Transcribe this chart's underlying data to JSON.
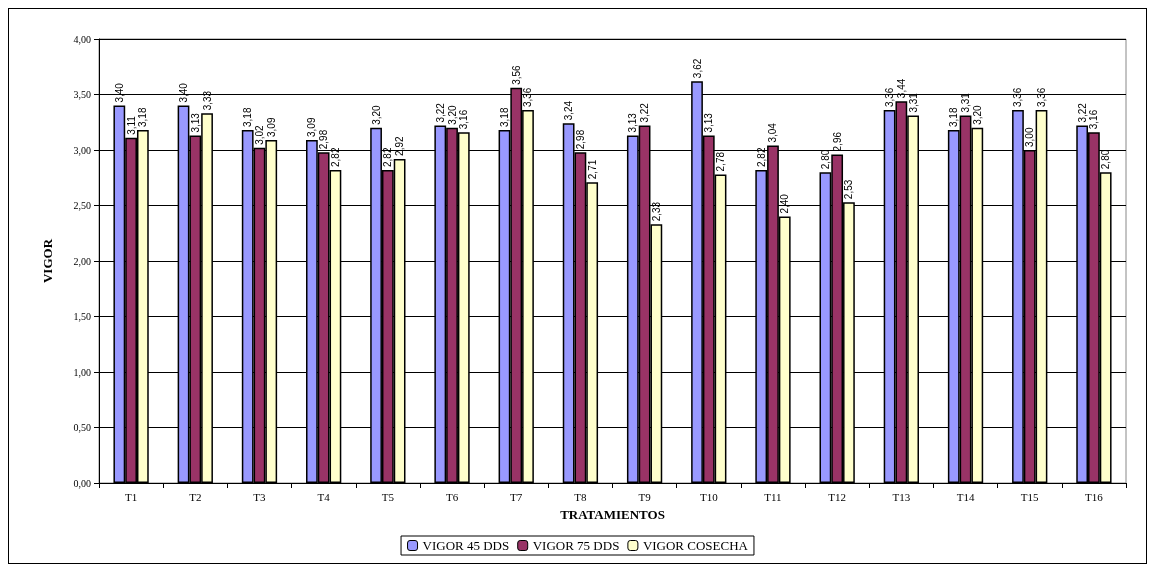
{
  "chart_data": {
    "type": "bar",
    "xlabel": "TRATAMIENTOS",
    "ylabel": "VIGOR",
    "categories": [
      "T1",
      "T2",
      "T3",
      "T4",
      "T5",
      "T6",
      "T7",
      "T8",
      "T9",
      "T10",
      "T11",
      "T12",
      "T13",
      "T14",
      "T15",
      "T16"
    ],
    "series": [
      {
        "name": "VIGOR 45 DDS",
        "color": "#9999ff",
        "values": [
          3.4,
          3.4,
          3.18,
          3.09,
          3.2,
          3.22,
          3.18,
          3.24,
          3.13,
          3.62,
          2.82,
          2.8,
          3.36,
          3.18,
          3.36,
          3.22
        ],
        "value_labels": [
          "3,40",
          "3,40",
          "3,18",
          "3,09",
          "3,20",
          "3,22",
          "3,18",
          "3,24",
          "3,13",
          "3,62",
          "2,82",
          "2,80",
          "3,36",
          "3,18",
          "3,36",
          "3,22"
        ]
      },
      {
        "name": "VIGOR 75 DDS",
        "color": "#993366",
        "values": [
          3.11,
          3.13,
          3.02,
          2.98,
          2.82,
          3.2,
          3.56,
          2.98,
          3.22,
          3.13,
          3.04,
          2.96,
          3.44,
          3.31,
          3.0,
          3.16
        ],
        "value_labels": [
          "3,11",
          "3,13",
          "3,02",
          "2,98",
          "2,82",
          "3,20",
          "3,56",
          "2,98",
          "3,22",
          "3,13",
          "3,04",
          "2,96",
          "3,44",
          "3,31",
          "3,00",
          "3,16"
        ]
      },
      {
        "name": "VIGOR COSECHA",
        "color": "#ffffcc",
        "values": [
          3.18,
          3.33,
          3.09,
          2.82,
          2.92,
          3.16,
          3.36,
          2.71,
          2.33,
          2.78,
          2.4,
          2.53,
          3.31,
          3.2,
          3.36,
          2.8
        ],
        "value_labels": [
          "3,18",
          "3,33",
          "3,09",
          "2,82",
          "2,92",
          "3,16",
          "3,36",
          "2,71",
          "2,33",
          "2,78",
          "2,40",
          "2,53",
          "3,31",
          "3,20",
          "3,36",
          "2,80"
        ]
      }
    ],
    "ylim": [
      0,
      4
    ],
    "yticks": [
      {
        "value": 0,
        "label": "0,00"
      },
      {
        "value": 0.5,
        "label": "0,50"
      },
      {
        "value": 1,
        "label": "1,00"
      },
      {
        "value": 1.5,
        "label": "1,50"
      },
      {
        "value": 2,
        "label": "2,00"
      },
      {
        "value": 2.5,
        "label": "2,50"
      },
      {
        "value": 3,
        "label": "3,00"
      },
      {
        "value": 3.5,
        "label": "3,50"
      },
      {
        "value": 4,
        "label": "4,00"
      }
    ],
    "grid": "y",
    "legend": "bottom"
  }
}
